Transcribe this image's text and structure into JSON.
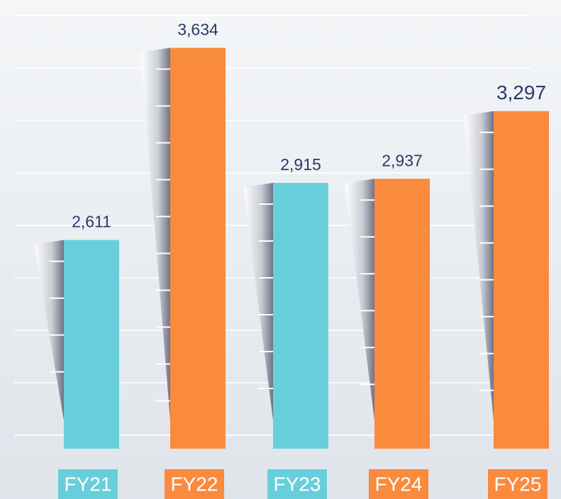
{
  "chart_data": {
    "type": "bar",
    "categories": [
      "FY21",
      "FY22",
      "FY23",
      "FY24",
      "FY25"
    ],
    "values": [
      2611,
      3634,
      2915,
      2937,
      3297
    ],
    "value_labels": [
      "2,611",
      "3,634",
      "2,915",
      "2,937",
      "3,297"
    ],
    "colors": [
      "#67cfdb",
      "#f98a3e",
      "#67cfdb",
      "#f98a3e",
      "#f98a3e"
    ],
    "ylim": [
      1500,
      3700
    ]
  }
}
